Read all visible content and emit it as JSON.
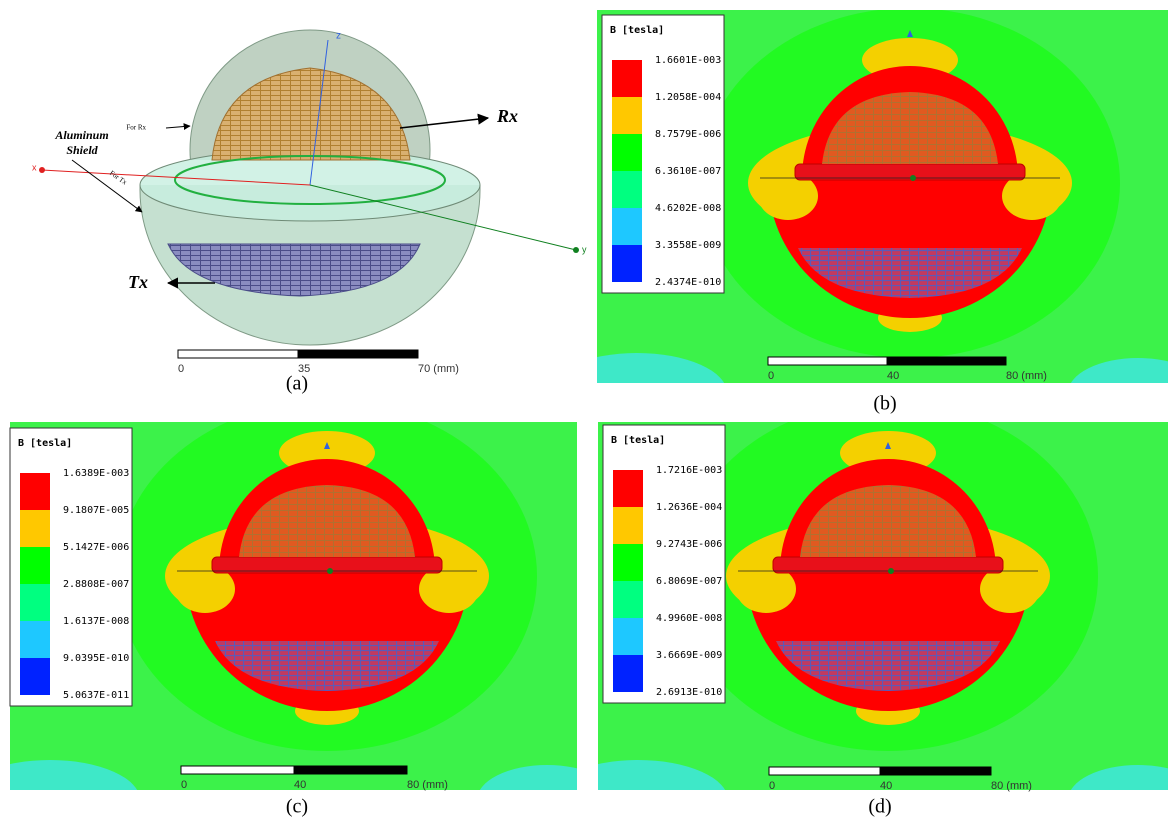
{
  "panels": [
    {
      "caption": "(a)",
      "labels": {
        "z": "z",
        "x": "x",
        "y": "y",
        "rx": "Rx",
        "tx": "Tx",
        "shield": [
          "Aluminum",
          "Shield"
        ],
        "for_rx": "For Rx",
        "for_tx": "For Tx"
      },
      "scale": [
        "0",
        "35",
        "70 (mm)"
      ]
    },
    {
      "caption": "(b)",
      "legend_title": "B [tesla]",
      "legend": [
        "1.6601E-003",
        "1.2058E-004",
        "8.7579E-006",
        "6.3610E-007",
        "4.6202E-008",
        "3.3558E-009",
        "2.4374E-010"
      ],
      "scale": [
        "0",
        "40",
        "80 (mm)"
      ]
    },
    {
      "caption": "(c)",
      "legend_title": "B [tesla]",
      "legend": [
        "1.6389E-003",
        "9.1807E-005",
        "5.1427E-006",
        "2.8808E-007",
        "1.6137E-008",
        "9.0395E-010",
        "5.0637E-011"
      ],
      "scale": [
        "0",
        "40",
        "80 (mm)"
      ]
    },
    {
      "caption": "(d)",
      "legend_title": "B [tesla]",
      "legend": [
        "1.7216E-003",
        "1.2636E-004",
        "9.2743E-006",
        "6.8069E-007",
        "4.9960E-008",
        "3.6669E-009",
        "2.6913E-010"
      ],
      "scale": [
        "0",
        "40",
        "80 (mm)"
      ]
    }
  ]
}
